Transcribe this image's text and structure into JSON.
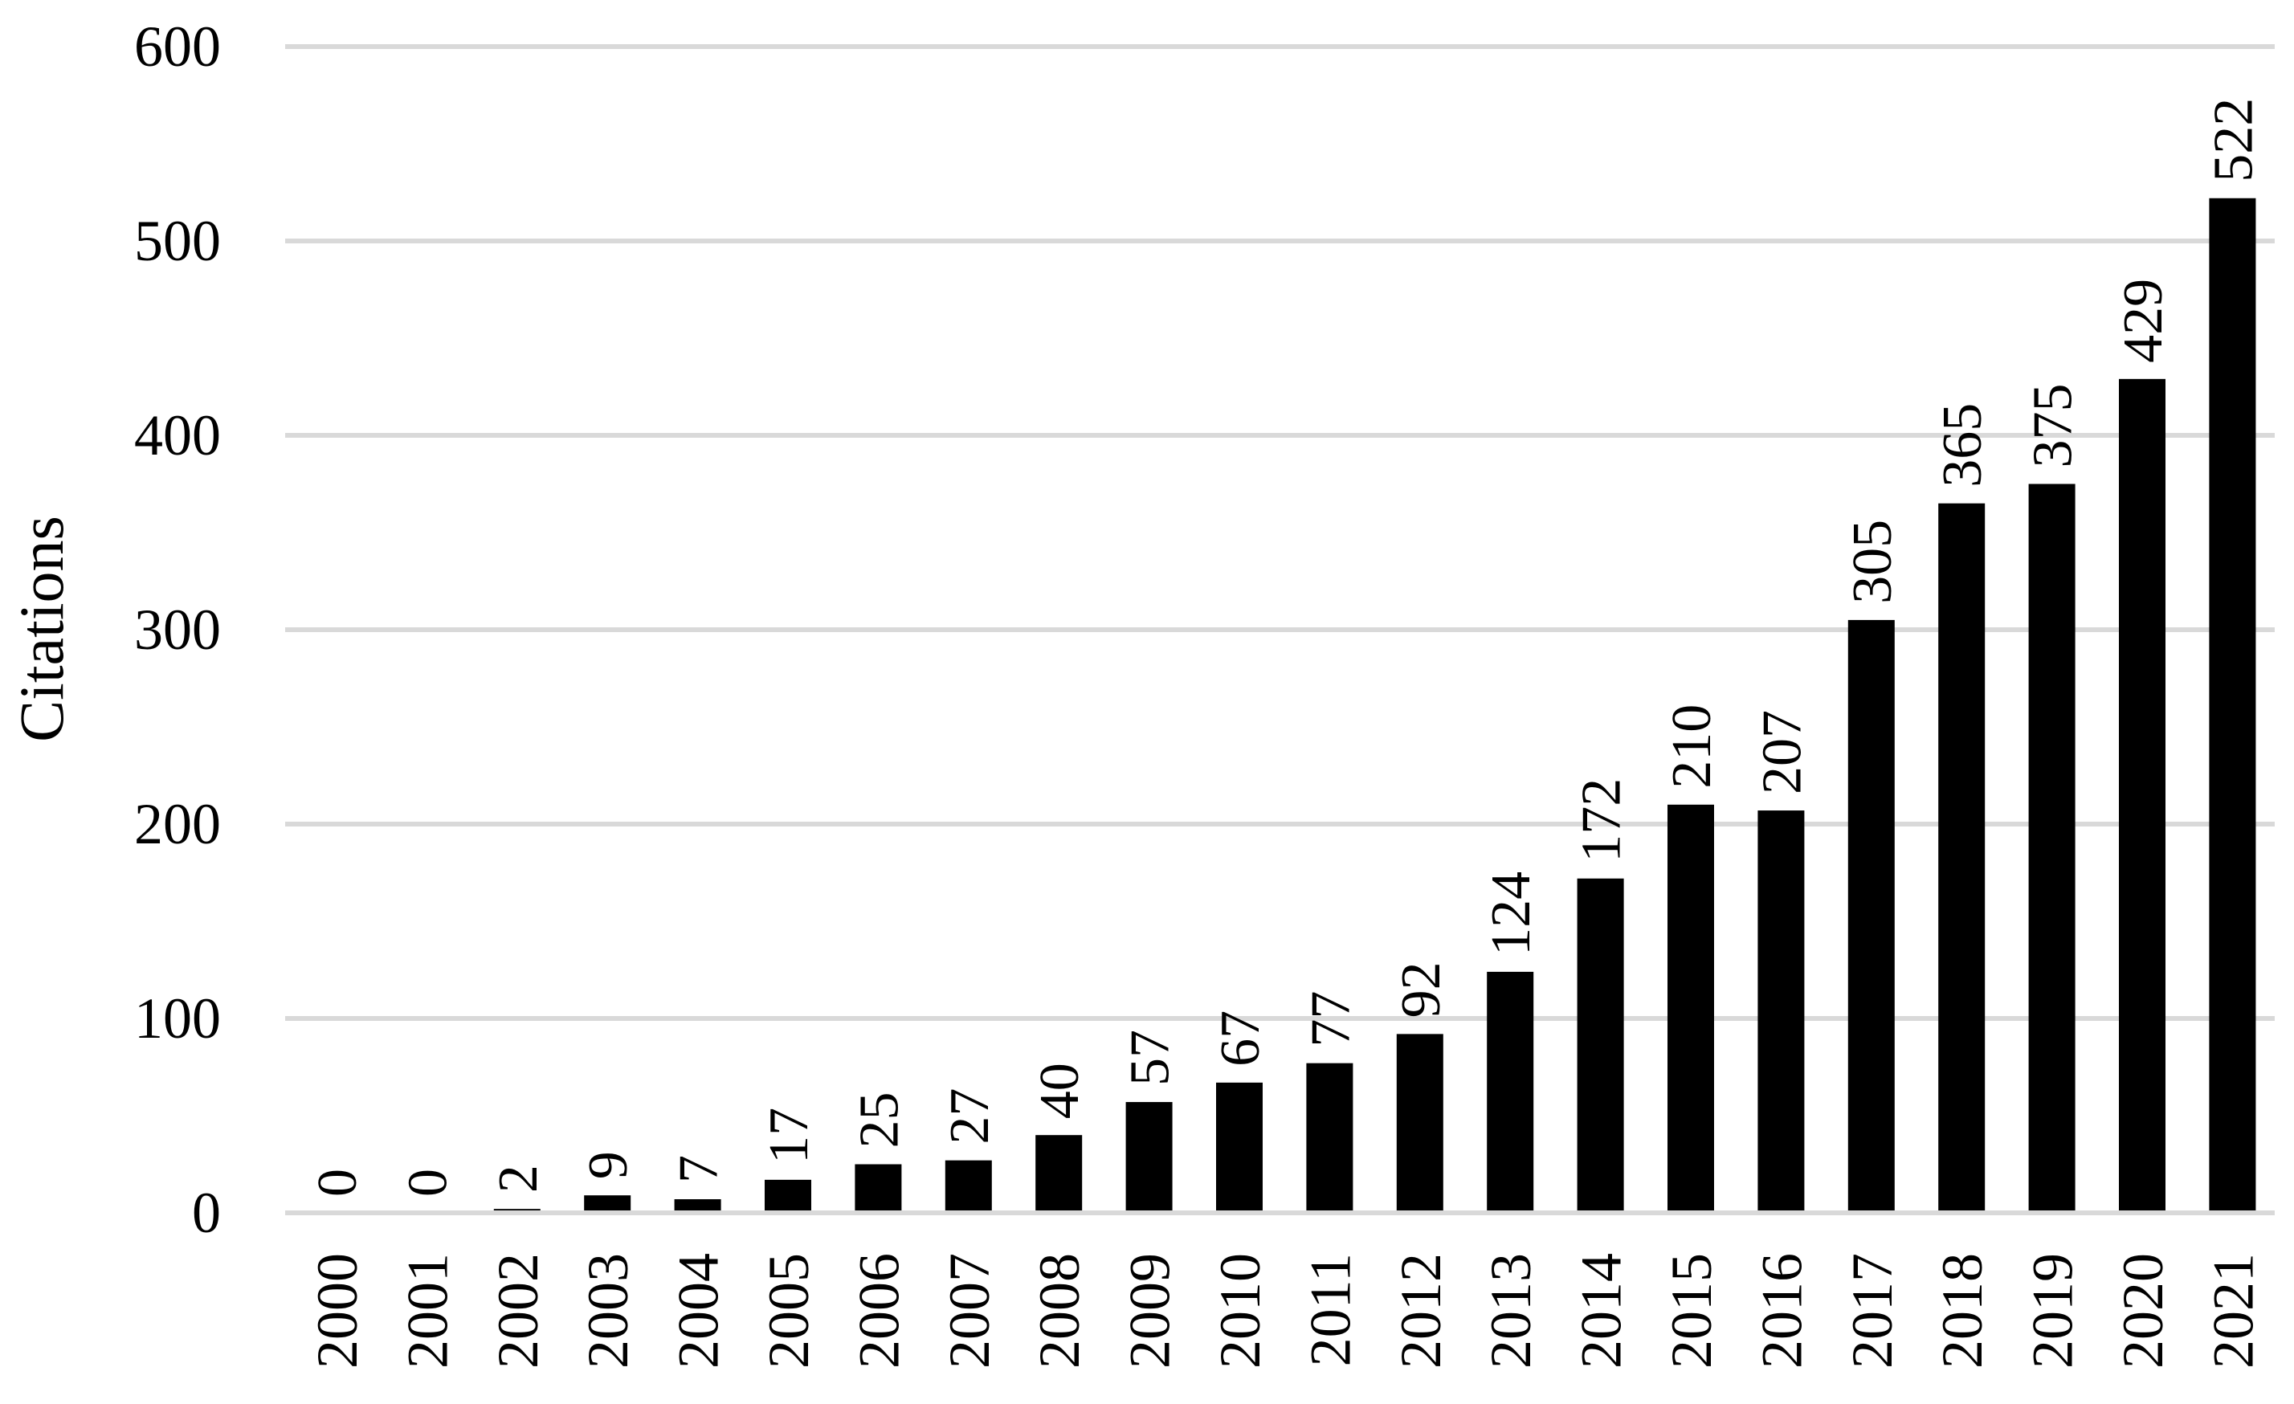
{
  "chart_data": {
    "type": "bar",
    "title": "",
    "xlabel": "",
    "ylabel": "Citations",
    "ylim": [
      0,
      600
    ],
    "yticks": [
      0,
      100,
      200,
      300,
      400,
      500,
      600
    ],
    "grid": true,
    "legend": "none",
    "bar_color": "#000000",
    "grid_color": "#d9d9d9",
    "categories": [
      "2000",
      "2001",
      "2002",
      "2003",
      "2004",
      "2005",
      "2006",
      "2007",
      "2008",
      "2009",
      "2010",
      "2011",
      "2012",
      "2013",
      "2014",
      "2015",
      "2016",
      "2017",
      "2018",
      "2019",
      "2020",
      "2021"
    ],
    "values": [
      0,
      0,
      2,
      9,
      7,
      17,
      25,
      27,
      40,
      57,
      67,
      77,
      92,
      124,
      172,
      210,
      207,
      305,
      365,
      375,
      429,
      522
    ]
  }
}
